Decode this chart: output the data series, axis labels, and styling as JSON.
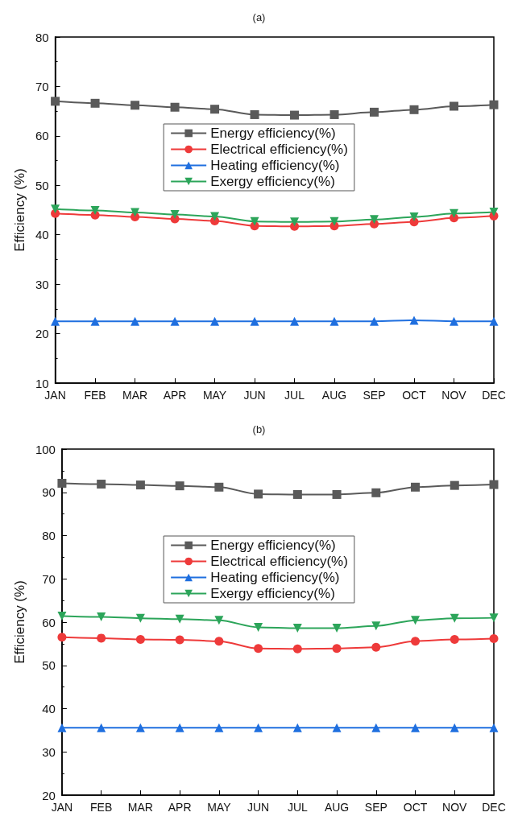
{
  "chart_data": [
    {
      "type": "line",
      "title": "(a)",
      "ylabel": "Efficiency (%)",
      "categories": [
        "JAN",
        "FEB",
        "MAR",
        "APR",
        "MAY",
        "JUN",
        "JUL",
        "AUG",
        "SEP",
        "OCT",
        "NOV",
        "DEC"
      ],
      "series": [
        {
          "name": "Energy efficiency(%)",
          "color": "#5a5a5a",
          "marker": "square",
          "values": [
            67.0,
            66.6,
            66.2,
            65.8,
            65.4,
            64.3,
            64.2,
            64.3,
            64.8,
            65.3,
            66.0,
            66.3
          ]
        },
        {
          "name": "Electrical efficiency(%)",
          "color": "#ee3a3a",
          "marker": "circle",
          "values": [
            44.3,
            44.0,
            43.6,
            43.2,
            42.8,
            41.8,
            41.7,
            41.8,
            42.2,
            42.6,
            43.4,
            43.8
          ]
        },
        {
          "name": "Heating efficiency(%)",
          "color": "#1f6fdf",
          "marker": "triangle",
          "values": [
            22.5,
            22.5,
            22.5,
            22.5,
            22.5,
            22.5,
            22.5,
            22.5,
            22.5,
            22.7,
            22.5,
            22.5
          ]
        },
        {
          "name": "Exergy efficiency(%)",
          "color": "#2ca55a",
          "marker": "triangle_down",
          "values": [
            45.2,
            44.9,
            44.5,
            44.1,
            43.7,
            42.7,
            42.6,
            42.7,
            43.1,
            43.6,
            44.3,
            44.6
          ]
        }
      ],
      "ylim": [
        10,
        80
      ],
      "yticks": [
        10,
        20,
        30,
        40,
        50,
        60,
        70,
        80
      ],
      "grid": false,
      "legend": "top"
    },
    {
      "type": "line",
      "title": "(b)",
      "ylabel": "Efficiency (%)",
      "categories": [
        "JAN",
        "FEB",
        "MAR",
        "APR",
        "MAY",
        "JUN",
        "JUL",
        "AUG",
        "SEP",
        "OCT",
        "NOV",
        "DEC"
      ],
      "series": [
        {
          "name": "Energy efficiency(%)",
          "color": "#5a5a5a",
          "marker": "square",
          "values": [
            92.1,
            91.9,
            91.7,
            91.5,
            91.2,
            89.6,
            89.5,
            89.5,
            89.9,
            91.2,
            91.6,
            91.8
          ]
        },
        {
          "name": "Electrical efficiency(%)",
          "color": "#ee3a3a",
          "marker": "circle",
          "values": [
            56.5,
            56.3,
            56.0,
            55.9,
            55.6,
            53.9,
            53.8,
            53.9,
            54.2,
            55.6,
            56.0,
            56.2
          ]
        },
        {
          "name": "Heating efficiency(%)",
          "color": "#1f6fdf",
          "marker": "triangle",
          "values": [
            35.6,
            35.6,
            35.6,
            35.6,
            35.6,
            35.6,
            35.6,
            35.6,
            35.6,
            35.6,
            35.6,
            35.6
          ]
        },
        {
          "name": "Exergy efficiency(%)",
          "color": "#2ca55a",
          "marker": "triangle_down",
          "values": [
            61.4,
            61.2,
            60.9,
            60.7,
            60.4,
            58.8,
            58.6,
            58.6,
            59.1,
            60.4,
            60.9,
            61.0
          ]
        }
      ],
      "ylim": [
        20,
        100
      ],
      "yticks": [
        20,
        30,
        40,
        50,
        60,
        70,
        80,
        90,
        100
      ],
      "grid": false,
      "legend": "top"
    }
  ]
}
